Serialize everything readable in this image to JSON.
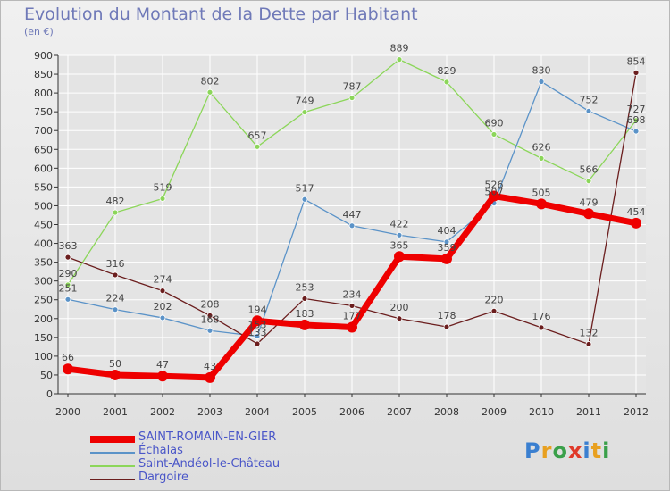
{
  "page": {
    "title": "Evolution du Montant de la Dette par Habitant",
    "unit": "(en €)",
    "logo": "Proxiti"
  },
  "colors": {
    "saint_romain": "#ee0000",
    "echalas": "#5b93c8",
    "saint_andeol": "#8cd65a",
    "dargoire": "#6b1e1e",
    "grid": "#ffffff",
    "axis": "#333333"
  },
  "chart_data": {
    "type": "line",
    "title": "Evolution du Montant de la Dette par Habitant",
    "ylabel": "(en €)",
    "x": [
      "2000",
      "2001",
      "2002",
      "2003",
      "2004",
      "2005",
      "2006",
      "2007",
      "2008",
      "2009",
      "2010",
      "2011",
      "2012"
    ],
    "ylim": [
      0,
      900
    ],
    "yticks": [
      0,
      50,
      100,
      150,
      200,
      250,
      300,
      350,
      400,
      450,
      500,
      550,
      600,
      650,
      700,
      750,
      800,
      850,
      900
    ],
    "grid": true,
    "legend": "bottom-left",
    "series": [
      {
        "key": "saint_romain",
        "name": "SAINT-ROMAIN-EN-GIER",
        "values": [
          66,
          50,
          47,
          43,
          194,
          183,
          177,
          365,
          359,
          526,
          505,
          479,
          454
        ]
      },
      {
        "key": "echalas",
        "name": "Échalas",
        "values": [
          251,
          224,
          202,
          168,
          153,
          517,
          447,
          422,
          404,
          507,
          830,
          752,
          698
        ]
      },
      {
        "key": "saint_andeol",
        "name": "Saint-Andéol-le-Château",
        "values": [
          290,
          482,
          519,
          802,
          657,
          749,
          787,
          889,
          829,
          690,
          626,
          566,
          727
        ]
      },
      {
        "key": "dargoire",
        "name": "Dargoire",
        "values": [
          363,
          316,
          274,
          208,
          133,
          253,
          234,
          200,
          178,
          220,
          176,
          132,
          854
        ]
      }
    ]
  }
}
